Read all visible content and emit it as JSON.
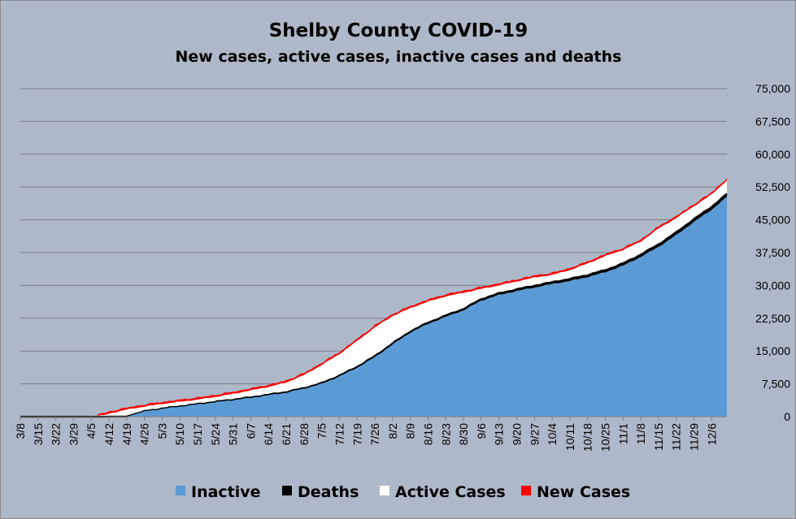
{
  "chart_data": {
    "type": "area",
    "title": "Shelby County COVID-19",
    "subtitle": "New cases, active cases, inactive cases and deaths",
    "stacked": true,
    "ylim": [
      0,
      75000
    ],
    "y_ticks": [
      "0",
      "7,500",
      "15,000",
      "22,500",
      "30,000",
      "37,500",
      "45,000",
      "52,500",
      "60,000",
      "67,500",
      "75,000"
    ],
    "y_tick_values": [
      0,
      7500,
      15000,
      22500,
      30000,
      37500,
      45000,
      52500,
      60000,
      67500,
      75000
    ],
    "y_axis_side": "right",
    "grid": true,
    "x_tick_labels": [
      "3/8",
      "3/15",
      "3/22",
      "3/29",
      "4/5",
      "4/12",
      "4/19",
      "4/26",
      "5/3",
      "5/10",
      "5/17",
      "5/24",
      "5/31",
      "6/7",
      "6/14",
      "6/21",
      "6/28",
      "7/5",
      "7/12",
      "7/19",
      "7/26",
      "8/2",
      "8/9",
      "8/16",
      "8/23",
      "8/30",
      "9/6",
      "9/13",
      "9/20",
      "9/27",
      "10/4",
      "10/11",
      "10/18",
      "10/25",
      "11/1",
      "11/8",
      "11/15",
      "11/22",
      "11/29",
      "12/6"
    ],
    "x_tick_day": [
      0,
      7,
      14,
      21,
      28,
      35,
      42,
      49,
      56,
      63,
      70,
      77,
      84,
      91,
      98,
      105,
      112,
      119,
      126,
      133,
      140,
      147,
      154,
      161,
      168,
      175,
      182,
      189,
      196,
      203,
      210,
      217,
      224,
      231,
      238,
      245,
      252,
      259,
      266,
      273
    ],
    "x_day_max": 279,
    "legend_position": "bottom",
    "series": [
      {
        "name": "Inactive",
        "color": "#5b9bd5"
      },
      {
        "name": "Deaths",
        "color": "#000000"
      },
      {
        "name": "Active Cases",
        "color": "#ffffff"
      },
      {
        "name": "New Cases",
        "color": "#ff0000"
      }
    ],
    "cumulative_keypoints": {
      "day": [
        0,
        14,
        21,
        28,
        33,
        35,
        42,
        49,
        56,
        63,
        70,
        77,
        84,
        91,
        98,
        105,
        112,
        119,
        126,
        133,
        140,
        147,
        154,
        161,
        168,
        175,
        182,
        189,
        196,
        203,
        210,
        217,
        224,
        231,
        238,
        245,
        252,
        259,
        266,
        273,
        279
      ],
      "inactive": [
        0,
        0,
        0,
        0,
        0,
        0,
        0,
        1200,
        1800,
        2300,
        2800,
        3300,
        3800,
        4300,
        4900,
        5500,
        6400,
        7500,
        9200,
        11200,
        13600,
        16500,
        19200,
        21200,
        22800,
        24300,
        26500,
        27800,
        28700,
        29500,
        30300,
        31000,
        31900,
        33000,
        34500,
        36500,
        38800,
        41500,
        44500,
        47300,
        50200
      ],
      "deaths": [
        0,
        0,
        0,
        0,
        0,
        30,
        40,
        50,
        60,
        70,
        80,
        95,
        110,
        120,
        130,
        140,
        150,
        170,
        190,
        210,
        240,
        270,
        290,
        310,
        330,
        350,
        380,
        400,
        420,
        440,
        460,
        480,
        500,
        520,
        540,
        570,
        600,
        630,
        660,
        700,
        730
      ],
      "total": [
        0,
        0,
        0,
        200,
        300,
        700,
        1600,
        2300,
        2900,
        3400,
        3900,
        4500,
        5200,
        6000,
        6800,
        7800,
        9500,
        11800,
        14300,
        17300,
        20400,
        23000,
        24800,
        26300,
        27500,
        28300,
        29200,
        30000,
        30900,
        31800,
        32400,
        33500,
        35000,
        36700,
        38100,
        40000,
        43000,
        45400,
        48100,
        50800,
        54000
      ]
    }
  }
}
